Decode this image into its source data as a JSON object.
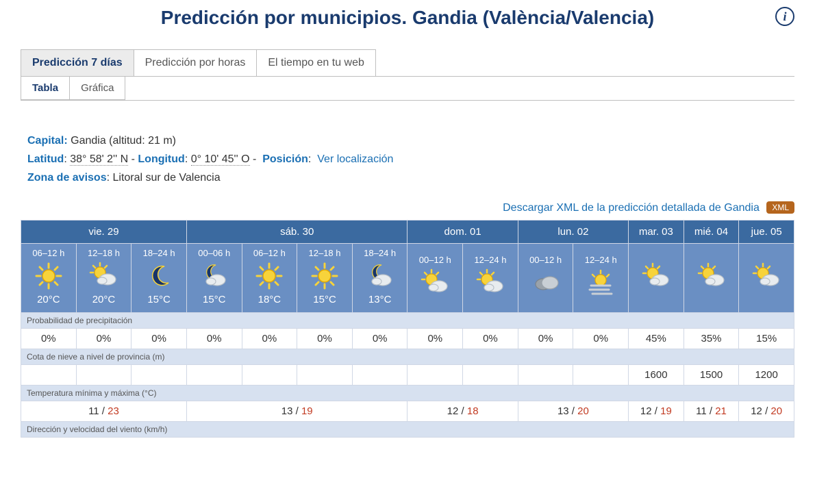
{
  "title": "Predicción por municipios. Gandia (València/Valencia)",
  "tabs": {
    "main": [
      "Predicción 7 días",
      "Predicción por horas",
      "El tiempo en tu web"
    ],
    "main_active": 0,
    "sub": [
      "Tabla",
      "Gráfica"
    ],
    "sub_active": 0
  },
  "meta": {
    "capital_label": "Capital:",
    "capital_value": "Gandia (altitud: 21 m)",
    "lat_label": "Latitud",
    "lat_value": "38° 58' 2'' N",
    "lon_label": "Longitud",
    "lon_value": "0° 10' 45'' O",
    "pos_label": "Posición",
    "pos_link": "Ver localización",
    "zone_label": "Zona de avisos",
    "zone_value": "Litoral sur de Valencia"
  },
  "xml": {
    "text": "Descargar XML de la predicción detallada de Gandia",
    "badge": "XML"
  },
  "colors": {
    "day_header_bg": "#3b6aa0",
    "period_bg": "#6a8fc3",
    "label_bg": "#d7e1f0",
    "tmax": "#c23b22",
    "brand": "#1a3b6e",
    "link": "#1a6fb3",
    "xml_badge": "#b5651d"
  },
  "labels": {
    "precip": "Probabilidad de precipitación",
    "snow": "Cota de nieve a nivel de provincia (m)",
    "temp": "Temperatura mínima y máxima (°C)",
    "wind": "Dirección y velocidad del viento (km/h)"
  },
  "days": [
    {
      "name": "vie. 29",
      "periods": [
        {
          "hours": "06–12 h",
          "icon": "sun",
          "temp": "20°C"
        },
        {
          "hours": "12–18 h",
          "icon": "sun-cloud",
          "temp": "20°C"
        },
        {
          "hours": "18–24 h",
          "icon": "moon",
          "temp": "15°C"
        }
      ],
      "tmin": 11,
      "tmax": 23
    },
    {
      "name": "sáb. 30",
      "periods": [
        {
          "hours": "00–06 h",
          "icon": "moon-cloud",
          "temp": "15°C"
        },
        {
          "hours": "06–12 h",
          "icon": "sun",
          "temp": "18°C"
        },
        {
          "hours": "12–18 h",
          "icon": "sun",
          "temp": "15°C"
        },
        {
          "hours": "18–24 h",
          "icon": "moon-cloud",
          "temp": "13°C"
        }
      ],
      "tmin": 13,
      "tmax": 19
    },
    {
      "name": "dom. 01",
      "periods": [
        {
          "hours": "00–12 h",
          "icon": "sun-cloud"
        },
        {
          "hours": "12–24 h",
          "icon": "sun-cloud"
        }
      ],
      "tmin": 12,
      "tmax": 18
    },
    {
      "name": "lun. 02",
      "periods": [
        {
          "hours": "00–12 h",
          "icon": "cloud"
        },
        {
          "hours": "12–24 h",
          "icon": "sun-fog"
        }
      ],
      "tmin": 13,
      "tmax": 20
    },
    {
      "name": "mar. 03",
      "periods": [
        {
          "icon": "sun-cloud"
        }
      ],
      "tmin": 12,
      "tmax": 19
    },
    {
      "name": "mié. 04",
      "periods": [
        {
          "icon": "sun-cloud"
        }
      ],
      "tmin": 11,
      "tmax": 21
    },
    {
      "name": "jue. 05",
      "periods": [
        {
          "icon": "sun-cloud"
        }
      ],
      "tmin": 12,
      "tmax": 20
    }
  ],
  "precip": [
    "0%",
    "0%",
    "0%",
    "0%",
    "0%",
    "0%",
    "0%",
    "0%",
    "0%",
    "0%",
    "0%",
    "45%",
    "35%",
    "15%"
  ],
  "snow": [
    "",
    "",
    "",
    "",
    "",
    "",
    "",
    "",
    "",
    "",
    "",
    "1600",
    "1500",
    "1200"
  ]
}
